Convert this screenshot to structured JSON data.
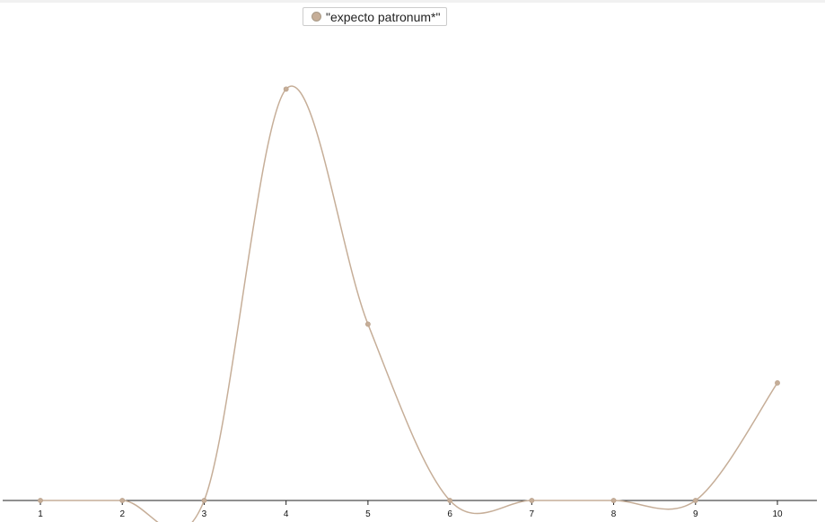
{
  "chart_data": {
    "type": "line",
    "curve": "smooth",
    "legend_position": "top-center",
    "grid": false,
    "x": [
      1,
      2,
      3,
      4,
      5,
      6,
      7,
      8,
      9,
      10
    ],
    "xlim": [
      1,
      10
    ],
    "ylim": [
      0,
      1
    ],
    "series": [
      {
        "name": "\"expecto patronum*\"",
        "color": "#c6ae98",
        "values": [
          0,
          0,
          0,
          0.98,
          0.42,
          0,
          0,
          0,
          0,
          0.28
        ]
      }
    ],
    "x_tick_labels": [
      "1",
      "2",
      "3",
      "4",
      "5",
      "6",
      "7",
      "8",
      "9",
      "10"
    ]
  }
}
